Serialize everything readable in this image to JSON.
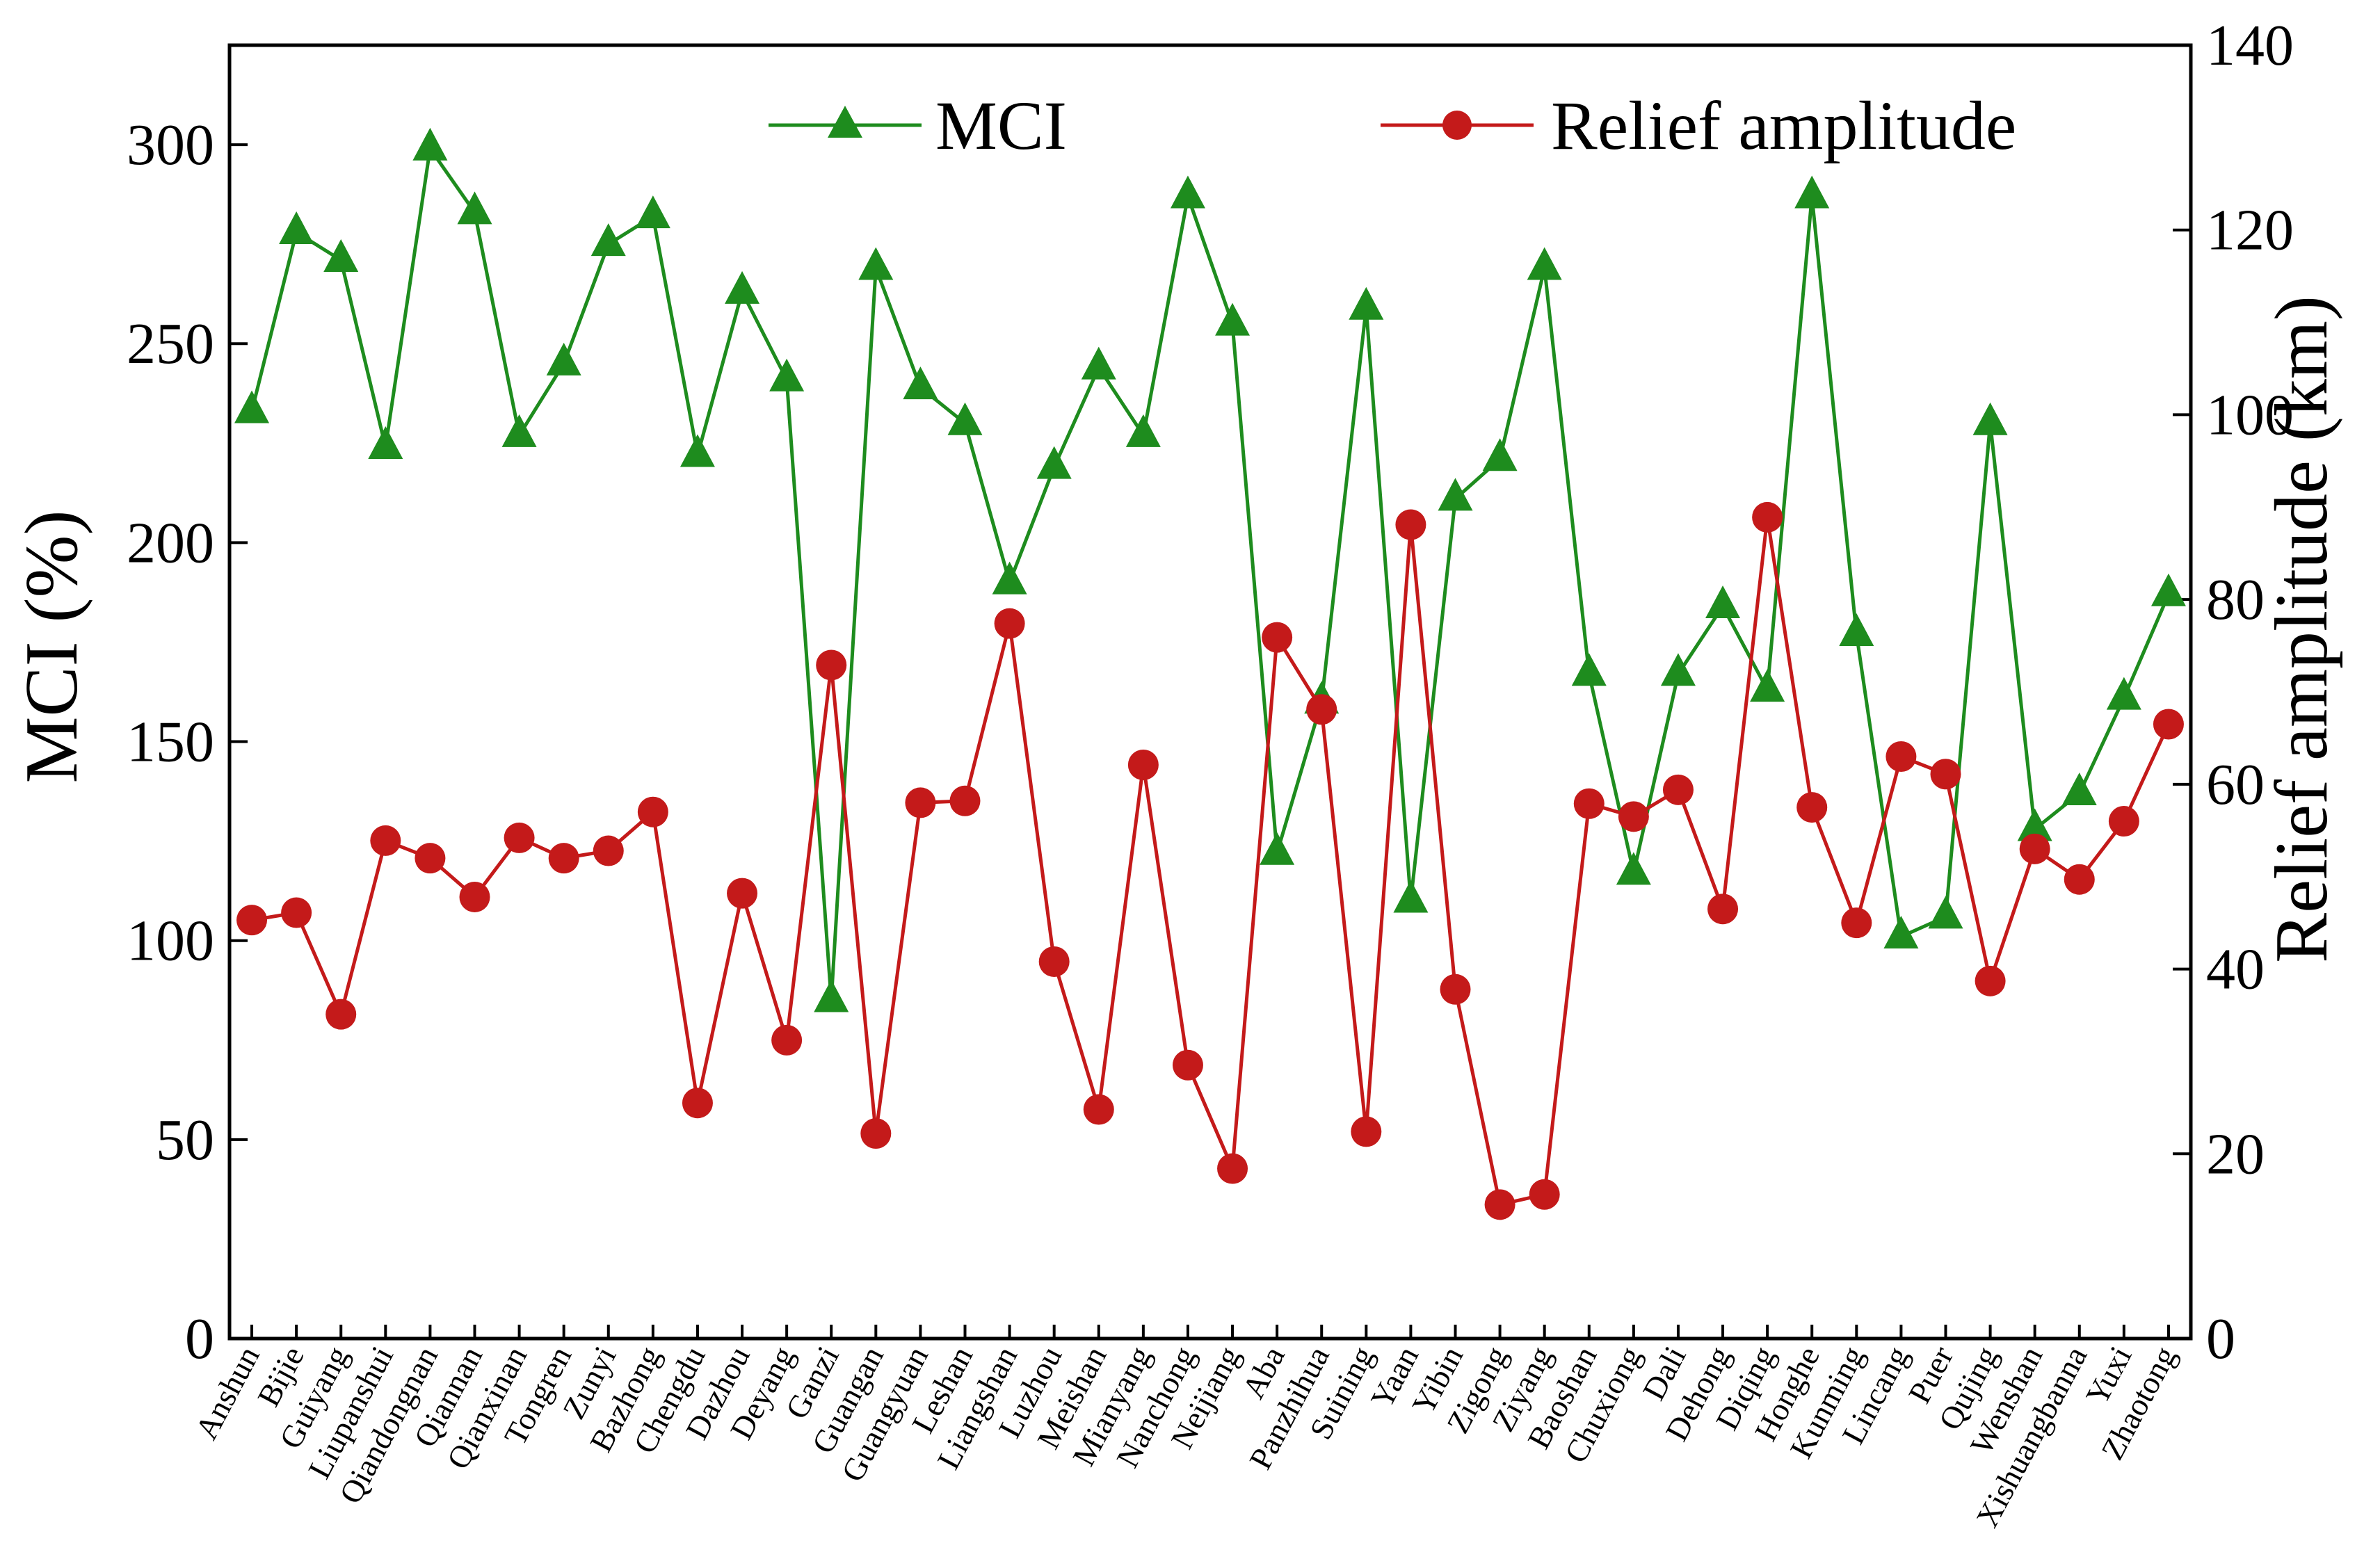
{
  "chart_data": {
    "type": "line",
    "title": "",
    "xlabel": "",
    "ylabel": "MCI (%)",
    "y2label": "Relief amplitude (km)",
    "ylim": [
      0,
      325
    ],
    "y2lim": [
      0,
      140
    ],
    "yticks": [
      0,
      50,
      100,
      150,
      200,
      250,
      300
    ],
    "y2ticks": [
      0,
      20,
      40,
      60,
      80,
      100,
      120,
      140
    ],
    "grid": false,
    "legend_position": "top",
    "categories": [
      "Anshun",
      "Bijie",
      "Guiyang",
      "Liupanshui",
      "Qiandongnan",
      "Qiannan",
      "Qianxinan",
      "Tongren",
      "Zunyi",
      "Bazhong",
      "Chengdu",
      "Dazhou",
      "Deyang",
      "Ganzi",
      "Guangan",
      "Guangyuan",
      "Leshan",
      "Liangshan",
      "Luzhou",
      "Meishan",
      "Mianyang",
      "Nanchong",
      "Neijiang",
      "Aba",
      "Panzhihua",
      "Suining",
      "Yaan",
      "Yibin",
      "Zigong",
      "Ziyang",
      "Baoshan",
      "Chuxiong",
      "Dali",
      "Dehong",
      "Diqing",
      "Honghe",
      "Kunming",
      "Lincang",
      "Puer",
      "Qujing",
      "Wenshan",
      "Xishuangbanna",
      "Yuxi",
      "Zhaotong"
    ],
    "series": [
      {
        "name": "MCI",
        "axis": "left",
        "color": "#1e8c1e",
        "marker": "triangle",
        "values": [
          233,
          278,
          271,
          224,
          299,
          283,
          227,
          245,
          275,
          282,
          222,
          263,
          241,
          85,
          269,
          239,
          230,
          190,
          219,
          244,
          227,
          287,
          255,
          122,
          160,
          259,
          110,
          211,
          221,
          269,
          167,
          117,
          167,
          184,
          163,
          287,
          177,
          101,
          106,
          230,
          128,
          137,
          161,
          187
        ]
      },
      {
        "name": "Relief amplitude",
        "axis": "right",
        "color": "#c41a1a",
        "marker": "circle",
        "values": [
          45.3,
          46.1,
          35.1,
          53.9,
          52.0,
          47.8,
          54.2,
          52.0,
          52.8,
          57.0,
          25.5,
          48.2,
          32.3,
          72.9,
          22.2,
          58.0,
          58.2,
          77.4,
          40.8,
          24.8,
          62.1,
          29.6,
          18.4,
          75.9,
          68.1,
          22.4,
          88.1,
          37.8,
          14.5,
          15.6,
          57.9,
          56.5,
          59.4,
          46.5,
          88.9,
          57.5,
          45.0,
          63.0,
          61.1,
          38.7,
          53.0,
          49.7,
          56.0,
          66.5
        ]
      }
    ]
  }
}
